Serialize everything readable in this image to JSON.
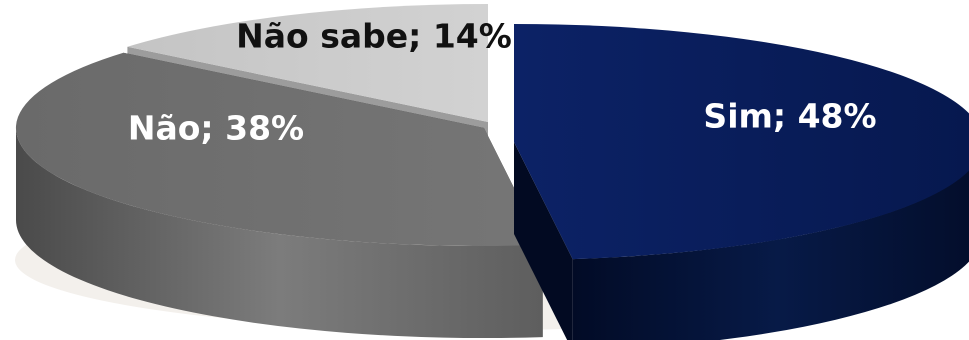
{
  "chart_data": {
    "type": "pie",
    "style": "3d-exploded",
    "slices": [
      {
        "label": "Sim",
        "value": 48,
        "display": "Sim; 48%",
        "color": "#0a1f5c",
        "label_color": "#ffffff"
      },
      {
        "label": "Não",
        "value": 38,
        "display": "Não; 38%",
        "color": "#6e6e6e",
        "label_color": "#ffffff"
      },
      {
        "label": "Não sabe",
        "value": 14,
        "display": "Não sabe; 14%",
        "color": "#cccccc",
        "label_color": "#111111"
      }
    ],
    "legend": "none",
    "data_labels": "inside"
  }
}
